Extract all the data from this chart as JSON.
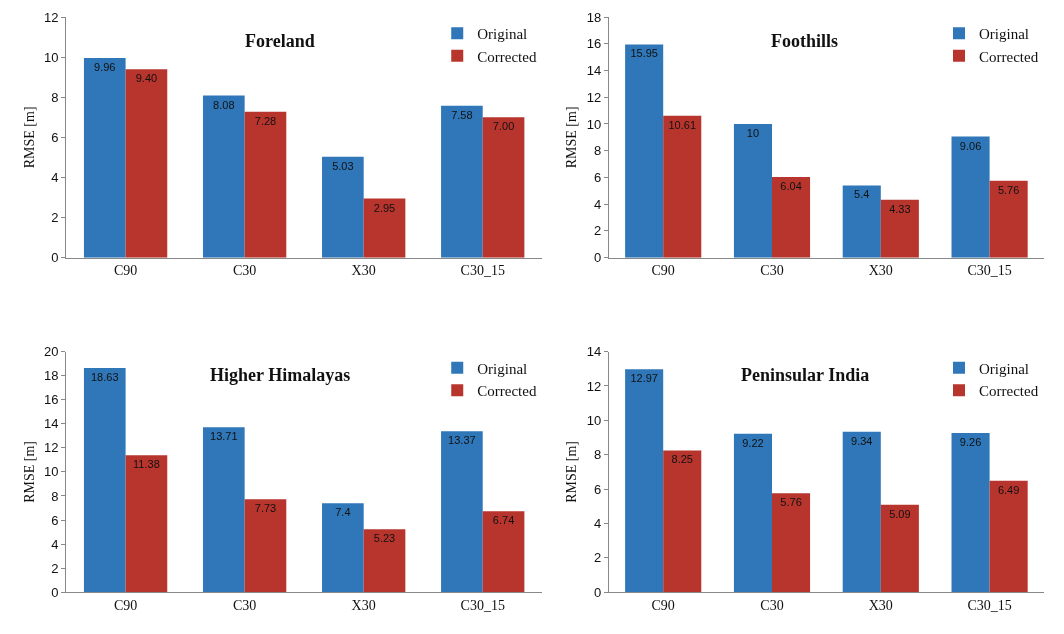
{
  "chart_data": [
    {
      "type": "bar",
      "title": "Foreland",
      "ylabel": "RMSE [m]",
      "categories": [
        "C90",
        "C30",
        "X30",
        "C30_15"
      ],
      "ylim": [
        0,
        12
      ],
      "yticks": [
        0,
        2,
        4,
        6,
        8,
        10,
        12
      ],
      "legend": "top right",
      "grid": false,
      "series": [
        {
          "name": "Original",
          "color": "#2f77b8",
          "values": [
            9.96,
            8.08,
            5.03,
            7.58
          ],
          "value_labels": [
            "9.96",
            "8.08",
            "5.03",
            "7.58"
          ]
        },
        {
          "name": "Corrected",
          "color": "#b8352e",
          "values": [
            9.4,
            7.28,
            2.95,
            7.0
          ],
          "value_labels": [
            "9.40",
            "7.28",
            "2.95",
            "7.00"
          ]
        }
      ]
    },
    {
      "type": "bar",
      "title": "Foothills",
      "ylabel": "RMSE [m]",
      "categories": [
        "C90",
        "C30",
        "X30",
        "C30_15"
      ],
      "ylim": [
        0,
        18
      ],
      "yticks": [
        0,
        2,
        4,
        6,
        8,
        10,
        12,
        14,
        16,
        18
      ],
      "legend": "top right",
      "grid": false,
      "series": [
        {
          "name": "Original",
          "color": "#2f77b8",
          "values": [
            15.95,
            10,
            5.4,
            9.06
          ],
          "value_labels": [
            "15.95",
            "10",
            "5.4",
            "9.06"
          ]
        },
        {
          "name": "Corrected",
          "color": "#b8352e",
          "values": [
            10.61,
            6.04,
            4.33,
            5.76
          ],
          "value_labels": [
            "10.61",
            "6.04",
            "4.33",
            "5.76"
          ]
        }
      ]
    },
    {
      "type": "bar",
      "title": "Higher Himalayas",
      "ylabel": "RMSE [m]",
      "categories": [
        "C90",
        "C30",
        "X30",
        "C30_15"
      ],
      "ylim": [
        0,
        20
      ],
      "yticks": [
        0,
        2,
        4,
        6,
        8,
        10,
        12,
        14,
        16,
        18,
        20
      ],
      "legend": "top right",
      "grid": false,
      "series": [
        {
          "name": "Original",
          "color": "#2f77b8",
          "values": [
            18.63,
            13.71,
            7.4,
            13.37
          ],
          "value_labels": [
            "18.63",
            "13.71",
            "7.4",
            "13.37"
          ]
        },
        {
          "name": "Corrected",
          "color": "#b8352e",
          "values": [
            11.38,
            7.73,
            5.23,
            6.74
          ],
          "value_labels": [
            "11.38",
            "7.73",
            "5.23",
            "6.74"
          ]
        }
      ]
    },
    {
      "type": "bar",
      "title": "Peninsular India",
      "ylabel": "RMSE [m]",
      "categories": [
        "C90",
        "C30",
        "X30",
        "C30_15"
      ],
      "ylim": [
        0,
        14
      ],
      "yticks": [
        0,
        2,
        4,
        6,
        8,
        10,
        12,
        14
      ],
      "legend": "top right",
      "grid": false,
      "series": [
        {
          "name": "Original",
          "color": "#2f77b8",
          "values": [
            12.97,
            9.22,
            9.34,
            9.26
          ],
          "value_labels": [
            "12.97",
            "9.22",
            "9.34",
            "9.26"
          ]
        },
        {
          "name": "Corrected",
          "color": "#b8352e",
          "values": [
            8.25,
            5.76,
            5.09,
            6.49
          ],
          "value_labels": [
            "8.25",
            "5.76",
            "5.09",
            "6.49"
          ]
        }
      ]
    }
  ]
}
